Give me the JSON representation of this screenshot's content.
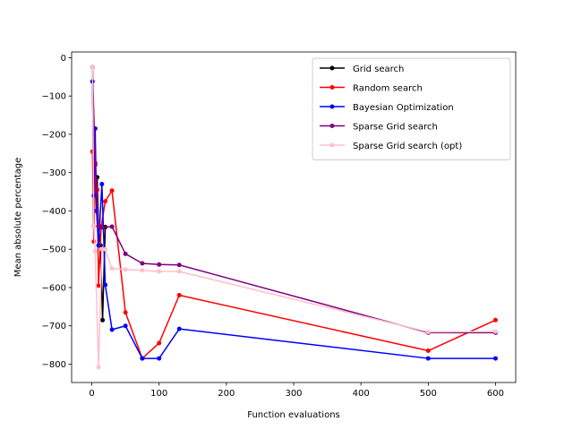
{
  "chart_data": {
    "type": "line",
    "title": "",
    "xlabel": "Function evaluations",
    "ylabel": "Mean absolute percentage",
    "xlim": [
      -30,
      630
    ],
    "ylim": [
      -848,
      15
    ],
    "xticks": [
      0,
      100,
      200,
      300,
      400,
      500,
      600
    ],
    "yticks": [
      0,
      -100,
      -200,
      -300,
      -400,
      -500,
      -600,
      -700,
      -800
    ],
    "grid": false,
    "legend_position": "top-right",
    "series": [
      {
        "name": "Grid search",
        "color": "#000000",
        "points": [
          [
            1,
            -25
          ],
          [
            3,
            -440
          ],
          [
            5,
            -345
          ],
          [
            8,
            -312
          ],
          [
            10,
            -440
          ],
          [
            13,
            -490
          ],
          [
            16,
            -685
          ],
          [
            20,
            -442
          ]
        ]
      },
      {
        "name": "Random search",
        "color": "#ff0000",
        "points": [
          [
            1,
            -245
          ],
          [
            3,
            -480
          ],
          [
            5,
            -280
          ],
          [
            8,
            -345
          ],
          [
            10,
            -595
          ],
          [
            14,
            -440
          ],
          [
            20,
            -375
          ],
          [
            30,
            -347
          ],
          [
            50,
            -665
          ],
          [
            75,
            -785
          ],
          [
            100,
            -745
          ],
          [
            130,
            -620
          ],
          [
            500,
            -765
          ],
          [
            600,
            -685
          ]
        ]
      },
      {
        "name": "Bayesian Optimization",
        "color": "#0000ff",
        "points": [
          [
            1,
            -62
          ],
          [
            3,
            -360
          ],
          [
            5,
            -185
          ],
          [
            7,
            -400
          ],
          [
            10,
            -490
          ],
          [
            15,
            -330
          ],
          [
            20,
            -593
          ],
          [
            30,
            -710
          ],
          [
            50,
            -700
          ],
          [
            75,
            -785
          ],
          [
            100,
            -785
          ],
          [
            130,
            -708
          ],
          [
            500,
            -785
          ],
          [
            600,
            -785
          ]
        ]
      },
      {
        "name": "Sparse Grid search",
        "color": "#800080",
        "points": [
          [
            1,
            -25
          ],
          [
            5,
            -275
          ],
          [
            10,
            -440
          ],
          [
            15,
            -443
          ],
          [
            30,
            -441
          ],
          [
            50,
            -512
          ],
          [
            75,
            -537
          ],
          [
            100,
            -540
          ],
          [
            130,
            -541
          ],
          [
            500,
            -718
          ],
          [
            600,
            -718
          ]
        ]
      },
      {
        "name": "Sparse Grid search (opt)",
        "color": "#ffc0cb",
        "points": [
          [
            1,
            -25
          ],
          [
            3,
            -440
          ],
          [
            5,
            -505
          ],
          [
            10,
            -808
          ],
          [
            15,
            -500
          ],
          [
            20,
            -500
          ],
          [
            30,
            -550
          ],
          [
            50,
            -553
          ],
          [
            75,
            -555
          ],
          [
            100,
            -558
          ],
          [
            130,
            -558
          ],
          [
            500,
            -716
          ],
          [
            600,
            -715
          ]
        ]
      }
    ]
  }
}
